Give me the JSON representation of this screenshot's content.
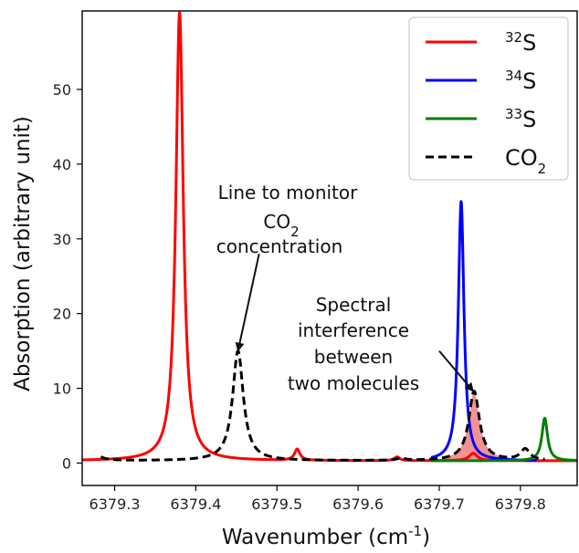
{
  "chart_data": {
    "type": "line",
    "xlabel": "Wavenumber (cm",
    "xlabel_sup": "-1",
    "xlabel_close": ")",
    "ylabel": "Absorption (arbitrary unit)",
    "xlim": [
      6379.26,
      6379.87
    ],
    "ylim": [
      -3,
      60.5
    ],
    "x_ticks": [
      6379.3,
      6379.4,
      6379.5,
      6379.6,
      6379.7,
      6379.8
    ],
    "x_tick_labels": [
      "6379.3",
      "6379.4",
      "6379.5",
      "6379.6",
      "6379.7",
      "6379.8"
    ],
    "y_ticks": [
      0,
      10,
      20,
      30,
      40,
      50
    ],
    "y_tick_labels": [
      "0",
      "10",
      "20",
      "30",
      "40",
      "50"
    ],
    "grid": false,
    "legend_position": "top-right",
    "baseline": 0.3,
    "series": [
      {
        "name_sup": "32",
        "name": "S",
        "color": "#ff0000",
        "style": "solid",
        "x_range": [
          6379.26,
          6379.87
        ],
        "peaks": [
          {
            "center": 6379.38,
            "height": 60,
            "width": 0.0055
          },
          {
            "center": 6379.525,
            "height": 1.5,
            "width": 0.004
          },
          {
            "center": 6379.648,
            "height": 0.5,
            "width": 0.004
          },
          {
            "center": 6379.742,
            "height": 1.0,
            "width": 0.006
          }
        ]
      },
      {
        "name_sup": "34",
        "name": "S",
        "color": "#0000ff",
        "style": "solid",
        "x_range": [
          6379.69,
          6379.82
        ],
        "peaks": [
          {
            "center": 6379.727,
            "height": 34.7,
            "width": 0.0042
          }
        ]
      },
      {
        "name_sup": "33",
        "name": "S",
        "color": "#008000",
        "style": "solid",
        "x_range": [
          6379.69,
          6379.87
        ],
        "peaks": [
          {
            "center": 6379.83,
            "height": 5.7,
            "width": 0.0042
          }
        ]
      },
      {
        "name": "CO",
        "name_sub": "2",
        "color": "#000000",
        "style": "dashed",
        "x_range": [
          6379.283,
          6379.83
        ],
        "peaks": [
          {
            "center": 6379.452,
            "height": 14.7,
            "width": 0.008
          },
          {
            "center": 6379.743,
            "height": 9.3,
            "width": 0.008
          },
          {
            "center": 6379.806,
            "height": 1.5,
            "width": 0.007
          },
          {
            "center": 6379.272,
            "height": 1.5,
            "width": 0.008
          },
          {
            "center": 6379.653,
            "height": 0.3,
            "width": 0.006
          }
        ]
      }
    ],
    "shaded_overlap": {
      "color": "#f08080",
      "x_range": [
        6379.705,
        6379.785
      ],
      "series_index": 3
    },
    "annotations": [
      {
        "lines": [
          "Line to monitor",
          "CO",
          "concentration"
        ],
        "co2_sub": "2",
        "arrow_to": [
          6379.452,
          15.0
        ],
        "arrow_from": [
          6379.478,
          28.0
        ]
      },
      {
        "lines": [
          "Spectral",
          "interference",
          "between",
          "two molecules"
        ],
        "arrow_to": [
          6379.742,
          9.6
        ],
        "arrow_from": [
          6379.7,
          15.0
        ]
      }
    ]
  }
}
